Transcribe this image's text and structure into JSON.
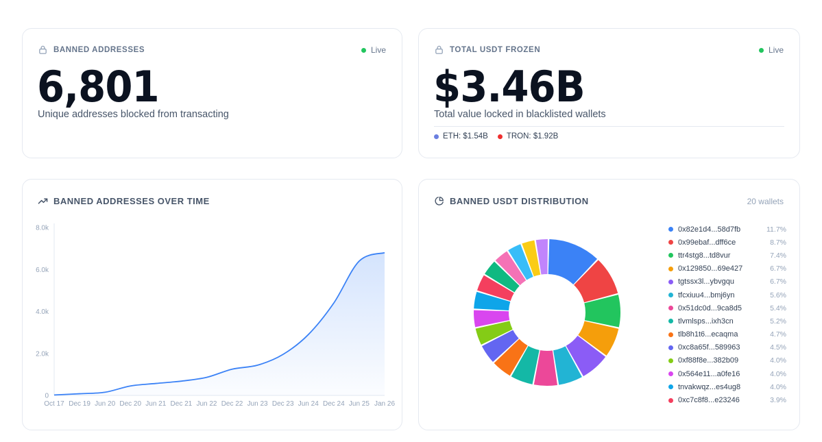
{
  "banned": {
    "title": "BANNED ADDRESSES",
    "status": "Live",
    "value": "6,801",
    "subtitle": "Unique addresses blocked from transacting"
  },
  "frozen": {
    "title": "TOTAL USDT FROZEN",
    "status": "Live",
    "value": "$3.46B",
    "subtitle": "Total value locked in blacklisted wallets",
    "chains": [
      {
        "label": "ETH: $1.54B",
        "color": "#6b7fe0"
      },
      {
        "label": "TRON: $1.92B",
        "color": "#ef2f2f"
      }
    ]
  },
  "over_time": {
    "title": "BANNED ADDRESSES OVER TIME"
  },
  "distribution": {
    "title": "BANNED USDT DISTRIBUTION",
    "wallet_count": "20 wallets",
    "legend": [
      {
        "name": "0x82e1d4...58d7fb",
        "pct": "11.7%",
        "color": "#3b82f6"
      },
      {
        "name": "0x99ebaf...dff6ce",
        "pct": "8.7%",
        "color": "#ef4444"
      },
      {
        "name": "ttr4stg8...td8vur",
        "pct": "7.4%",
        "color": "#22c55e"
      },
      {
        "name": "0x129850...69e427",
        "pct": "6.7%",
        "color": "#f59e0b"
      },
      {
        "name": "tgtssx3l...ybvgqu",
        "pct": "6.7%",
        "color": "#8b5cf6"
      },
      {
        "name": "tfcxiuu4...bmj6yn",
        "pct": "5.6%",
        "color": "#22b4d4"
      },
      {
        "name": "0x51dc0d...9ca8d5",
        "pct": "5.4%",
        "color": "#ec4899"
      },
      {
        "name": "tlvmlsps...ixh3cn",
        "pct": "5.2%",
        "color": "#14b8a6"
      },
      {
        "name": "tlb8h1t6...ecaqma",
        "pct": "4.7%",
        "color": "#f97316"
      },
      {
        "name": "0xc8a65f...589963",
        "pct": "4.5%",
        "color": "#6366f1"
      },
      {
        "name": "0xf88f8e...382b09",
        "pct": "4.0%",
        "color": "#84cc16"
      },
      {
        "name": "0x564e11...a0fe16",
        "pct": "4.0%",
        "color": "#d946ef"
      },
      {
        "name": "tnvakwqz...es4ug8",
        "pct": "4.0%",
        "color": "#0ea5e9"
      },
      {
        "name": "0xc7c8f8...e23246",
        "pct": "3.9%",
        "color": "#f43f5e"
      }
    ],
    "other_slices": [
      {
        "value": 3.7,
        "color": "#10b981"
      },
      {
        "value": 3.5,
        "color": "#f472b6"
      },
      {
        "value": 3.3,
        "color": "#38bdf8"
      },
      {
        "value": 3.1,
        "color": "#facc15"
      },
      {
        "value": 2.9,
        "color": "#c084fc"
      }
    ]
  },
  "chart_data": {
    "type": "area",
    "title": "BANNED ADDRESSES OVER TIME",
    "ylabel": "",
    "xlabel": "",
    "x_ticks": [
      "Oct 17",
      "Dec 19",
      "Jun 20",
      "Dec 20",
      "Jun 21",
      "Dec 21",
      "Jun 22",
      "Dec 22",
      "Jun 23",
      "Dec 23",
      "Jun 24",
      "Dec 24",
      "Jun 25",
      "Jan 26"
    ],
    "y_ticks": [
      {
        "label": "0",
        "value": 0
      },
      {
        "label": "2.0k",
        "value": 2000
      },
      {
        "label": "4.0k",
        "value": 4000
      },
      {
        "label": "6.0k",
        "value": 6000
      },
      {
        "label": "8.0k",
        "value": 8000
      }
    ],
    "ylim": [
      0,
      8000
    ],
    "grid": false,
    "series": [
      {
        "x": [
          "Oct 17",
          "Dec 19",
          "Jun 20",
          "Dec 20",
          "Jun 21",
          "Dec 21",
          "Jun 22",
          "Dec 22",
          "Jun 23",
          "Dec 23",
          "Jun 24",
          "Dec 24",
          "Jun 25",
          "Jan 26"
        ],
        "values": [
          20,
          80,
          150,
          450,
          570,
          680,
          860,
          1250,
          1440,
          1950,
          2900,
          4400,
          6400,
          6801
        ],
        "color": "#3b82f6"
      }
    ]
  }
}
